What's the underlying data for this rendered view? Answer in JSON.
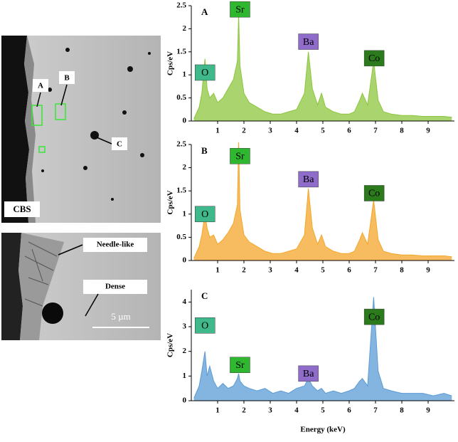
{
  "images": {
    "top": {
      "labels": [
        "A",
        "B",
        "C"
      ],
      "caption": "CBS"
    },
    "bottom": {
      "labels": [
        "Needle-like",
        "Dense"
      ],
      "scale_bar": "5 µm"
    }
  },
  "chart_data": [
    {
      "type": "line",
      "panel": "A",
      "ylabel": "Cps/eV",
      "xlim": [
        0,
        10
      ],
      "ylim": [
        0,
        2.5
      ],
      "xticks": [
        1,
        2,
        3,
        4,
        5,
        6,
        7,
        8,
        9
      ],
      "yticks": [
        0,
        0.5,
        1,
        1.5,
        2,
        2.5
      ],
      "x": [
        0.1,
        0.3,
        0.4,
        0.52,
        0.6,
        0.7,
        0.85,
        1.0,
        1.2,
        1.4,
        1.6,
        1.75,
        1.8,
        1.85,
        2.0,
        2.2,
        2.5,
        2.8,
        3.1,
        3.4,
        3.7,
        4.0,
        4.3,
        4.45,
        4.6,
        4.8,
        4.95,
        5.1,
        5.4,
        5.7,
        6.0,
        6.2,
        6.4,
        6.5,
        6.7,
        6.93,
        7.1,
        7.3,
        7.6,
        8.0,
        8.4,
        8.8,
        9.2,
        9.6,
        9.9
      ],
      "series": [
        {
          "color": "#8cc63e",
          "values": [
            0.05,
            0.3,
            0.6,
            1.35,
            0.7,
            0.5,
            0.6,
            0.4,
            0.5,
            0.7,
            0.9,
            1.3,
            2.3,
            1.2,
            0.6,
            0.4,
            0.3,
            0.2,
            0.15,
            0.15,
            0.2,
            0.25,
            0.6,
            1.5,
            0.7,
            0.35,
            0.6,
            0.3,
            0.2,
            0.15,
            0.15,
            0.2,
            0.45,
            0.6,
            0.35,
            1.3,
            0.45,
            0.2,
            0.15,
            0.12,
            0.12,
            0.1,
            0.1,
            0.1,
            0.08
          ]
        }
      ],
      "annotations": [
        {
          "text": "O",
          "color": "#3fb98b"
        },
        {
          "text": "Sr",
          "color": "#2fb82f"
        },
        {
          "text": "Ba",
          "color": "#8f6cc9"
        },
        {
          "text": "Co",
          "color": "#2b7a1c"
        }
      ]
    },
    {
      "type": "line",
      "panel": "B",
      "ylabel": "Cps/eV",
      "xlim": [
        0,
        10
      ],
      "ylim": [
        0,
        2.5
      ],
      "xticks": [
        1,
        2,
        3,
        4,
        5,
        6,
        7,
        8,
        9
      ],
      "yticks": [
        0,
        0.5,
        1,
        1.5,
        2,
        2.5
      ],
      "x": [
        0.1,
        0.3,
        0.4,
        0.52,
        0.6,
        0.7,
        0.85,
        1.0,
        1.2,
        1.4,
        1.6,
        1.75,
        1.8,
        1.85,
        2.0,
        2.2,
        2.5,
        2.8,
        3.1,
        3.4,
        3.7,
        4.0,
        4.3,
        4.45,
        4.6,
        4.8,
        4.95,
        5.1,
        5.4,
        5.7,
        6.0,
        6.2,
        6.4,
        6.5,
        6.7,
        6.93,
        7.1,
        7.3,
        7.6,
        8.0,
        8.4,
        8.8,
        9.2,
        9.6,
        9.9
      ],
      "series": [
        {
          "color": "#f4a62a",
          "values": [
            0.05,
            0.3,
            0.55,
            1.0,
            0.7,
            0.5,
            0.55,
            0.35,
            0.45,
            0.6,
            0.8,
            1.2,
            2.55,
            1.1,
            0.55,
            0.4,
            0.3,
            0.2,
            0.15,
            0.15,
            0.2,
            0.25,
            0.55,
            1.55,
            0.7,
            0.35,
            0.55,
            0.3,
            0.2,
            0.15,
            0.15,
            0.2,
            0.45,
            0.6,
            0.35,
            1.3,
            0.45,
            0.2,
            0.15,
            0.12,
            0.12,
            0.1,
            0.1,
            0.1,
            0.08
          ]
        }
      ],
      "annotations": [
        {
          "text": "O",
          "color": "#3fb98b"
        },
        {
          "text": "Sr",
          "color": "#2fb82f"
        },
        {
          "text": "Ba",
          "color": "#8f6cc9"
        },
        {
          "text": "Co",
          "color": "#2b7a1c"
        }
      ]
    },
    {
      "type": "line",
      "panel": "C",
      "ylabel": "Cps/eV",
      "xlabel": "Energy (keV)",
      "xlim": [
        0,
        10
      ],
      "ylim": [
        0,
        4.5
      ],
      "xticks": [
        1,
        2,
        3,
        4,
        5,
        6,
        7,
        8,
        9
      ],
      "yticks": [
        0,
        1,
        2,
        3,
        4
      ],
      "x": [
        0.1,
        0.3,
        0.4,
        0.52,
        0.6,
        0.7,
        0.85,
        1.0,
        1.2,
        1.4,
        1.6,
        1.75,
        1.8,
        1.85,
        2.0,
        2.2,
        2.5,
        2.8,
        3.1,
        3.4,
        3.7,
        4.0,
        4.3,
        4.45,
        4.6,
        4.8,
        4.95,
        5.1,
        5.4,
        5.7,
        6.0,
        6.2,
        6.4,
        6.5,
        6.7,
        6.93,
        7.1,
        7.3,
        7.6,
        8.0,
        8.4,
        8.8,
        9.2,
        9.6,
        9.9
      ],
      "series": [
        {
          "color": "#5b9bd5",
          "values": [
            0.1,
            0.6,
            1.2,
            2.0,
            1.0,
            1.4,
            0.8,
            0.5,
            0.7,
            0.5,
            0.6,
            0.9,
            1.1,
            0.8,
            0.6,
            0.5,
            0.4,
            0.5,
            0.3,
            0.4,
            0.3,
            0.5,
            0.6,
            0.9,
            0.6,
            0.4,
            0.5,
            0.3,
            0.4,
            0.3,
            0.4,
            0.5,
            0.8,
            0.9,
            0.6,
            4.2,
            1.2,
            0.5,
            0.4,
            0.3,
            0.3,
            0.3,
            0.2,
            0.3,
            0.2
          ]
        }
      ],
      "annotations": [
        {
          "text": "O",
          "color": "#3fb98b"
        },
        {
          "text": "Sr",
          "color": "#2fb82f"
        },
        {
          "text": "Ba",
          "color": "#8f6cc9"
        },
        {
          "text": "Co",
          "color": "#2b7a1c"
        }
      ]
    }
  ]
}
